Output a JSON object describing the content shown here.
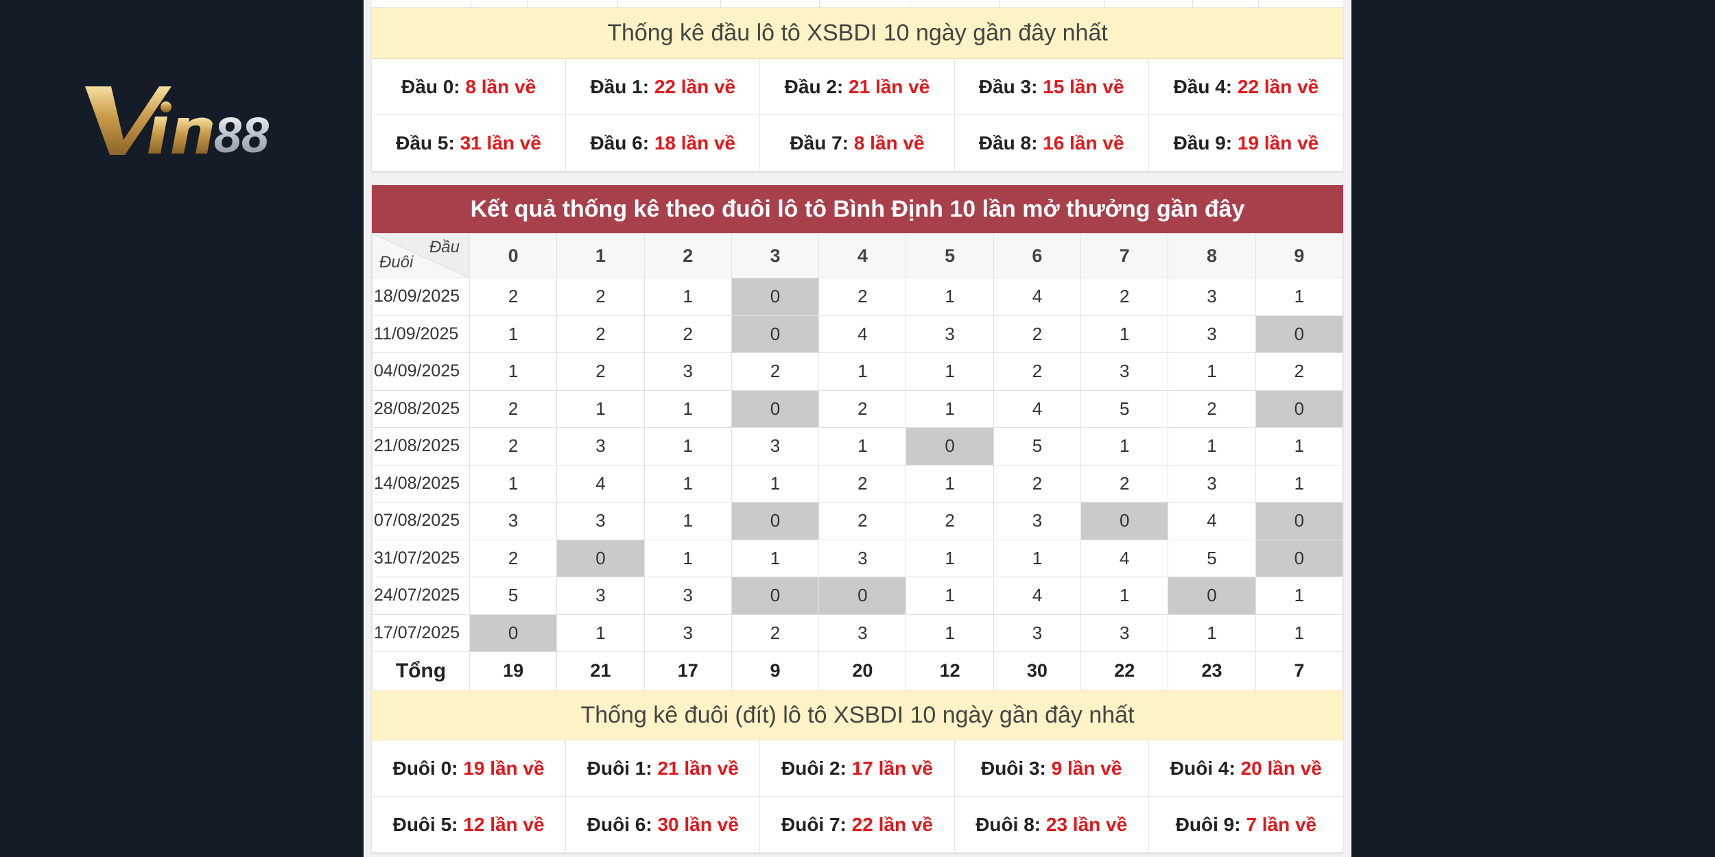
{
  "brand": {
    "logo_text": "Vin88",
    "gold": "#c9a55a",
    "silver": "#d0d4da"
  },
  "dau_section": {
    "heading": "Thống kê đầu lô tô XSBDI 10 ngày gần đây nhất",
    "items": [
      {
        "label": "Đầu 0:",
        "value": "8 lần về"
      },
      {
        "label": "Đầu 1:",
        "value": "22 lần về"
      },
      {
        "label": "Đầu 2:",
        "value": "21 lần về"
      },
      {
        "label": "Đầu 3:",
        "value": "15 lần về"
      },
      {
        "label": "Đầu 4:",
        "value": "22 lần về"
      },
      {
        "label": "Đầu 5:",
        "value": "31 lần về"
      },
      {
        "label": "Đầu 6:",
        "value": "18 lần về"
      },
      {
        "label": "Đầu 7:",
        "value": "8 lần về"
      },
      {
        "label": "Đầu 8:",
        "value": "16 lần về"
      },
      {
        "label": "Đầu 9:",
        "value": "19 lần về"
      }
    ]
  },
  "duoi_table": {
    "title": "Kết quả thống kê theo đuôi lô tô Bình Định 10 lần mở thưởng gần đây",
    "corner_top": "Đầu",
    "corner_bottom": "Đuôi",
    "columns": [
      "0",
      "1",
      "2",
      "3",
      "4",
      "5",
      "6",
      "7",
      "8",
      "9"
    ],
    "rows": [
      {
        "date": "18/09/2025",
        "values": [
          "2",
          "2",
          "1",
          "0",
          "2",
          "1",
          "4",
          "2",
          "3",
          "1"
        ]
      },
      {
        "date": "11/09/2025",
        "values": [
          "1",
          "2",
          "2",
          "0",
          "4",
          "3",
          "2",
          "1",
          "3",
          "0"
        ]
      },
      {
        "date": "04/09/2025",
        "values": [
          "1",
          "2",
          "3",
          "2",
          "1",
          "1",
          "2",
          "3",
          "1",
          "2"
        ]
      },
      {
        "date": "28/08/2025",
        "values": [
          "2",
          "1",
          "1",
          "0",
          "2",
          "1",
          "4",
          "5",
          "2",
          "0"
        ]
      },
      {
        "date": "21/08/2025",
        "values": [
          "2",
          "3",
          "1",
          "3",
          "1",
          "0",
          "5",
          "1",
          "1",
          "1"
        ]
      },
      {
        "date": "14/08/2025",
        "values": [
          "1",
          "4",
          "1",
          "1",
          "2",
          "1",
          "2",
          "2",
          "3",
          "1"
        ]
      },
      {
        "date": "07/08/2025",
        "values": [
          "3",
          "3",
          "1",
          "0",
          "2",
          "2",
          "3",
          "0",
          "4",
          "0"
        ]
      },
      {
        "date": "31/07/2025",
        "values": [
          "2",
          "0",
          "1",
          "1",
          "3",
          "1",
          "1",
          "4",
          "5",
          "0"
        ]
      },
      {
        "date": "24/07/2025",
        "values": [
          "5",
          "3",
          "3",
          "0",
          "0",
          "1",
          "4",
          "1",
          "0",
          "1"
        ]
      },
      {
        "date": "17/07/2025",
        "values": [
          "0",
          "1",
          "3",
          "2",
          "3",
          "1",
          "3",
          "3",
          "1",
          "1"
        ]
      }
    ],
    "total_label": "Tổng",
    "totals": [
      "19",
      "21",
      "17",
      "9",
      "20",
      "12",
      "30",
      "22",
      "23",
      "7"
    ]
  },
  "duoi_section": {
    "heading": "Thống kê đuôi (đít) lô tô XSBDI 10 ngày gần đây nhất",
    "items": [
      {
        "label": "Đuôi 0:",
        "value": "19 lần về"
      },
      {
        "label": "Đuôi 1:",
        "value": "21 lần về"
      },
      {
        "label": "Đuôi 2:",
        "value": "17 lần về"
      },
      {
        "label": "Đuôi 3:",
        "value": "9 lần về"
      },
      {
        "label": "Đuôi 4:",
        "value": "20 lần về"
      },
      {
        "label": "Đuôi 5:",
        "value": "12 lần về"
      },
      {
        "label": "Đuôi 6:",
        "value": "30 lần về"
      },
      {
        "label": "Đuôi 7:",
        "value": "22 lần về"
      },
      {
        "label": "Đuôi 8:",
        "value": "23 lần về"
      },
      {
        "label": "Đuôi 9:",
        "value": "7 lần về"
      }
    ]
  },
  "colors": {
    "page_bg": "#141c28",
    "title_bar": "#a8404c",
    "highlight_bg": "#fdf3c6",
    "value_red": "#e3171b",
    "zero_cell": "#cacaca"
  }
}
